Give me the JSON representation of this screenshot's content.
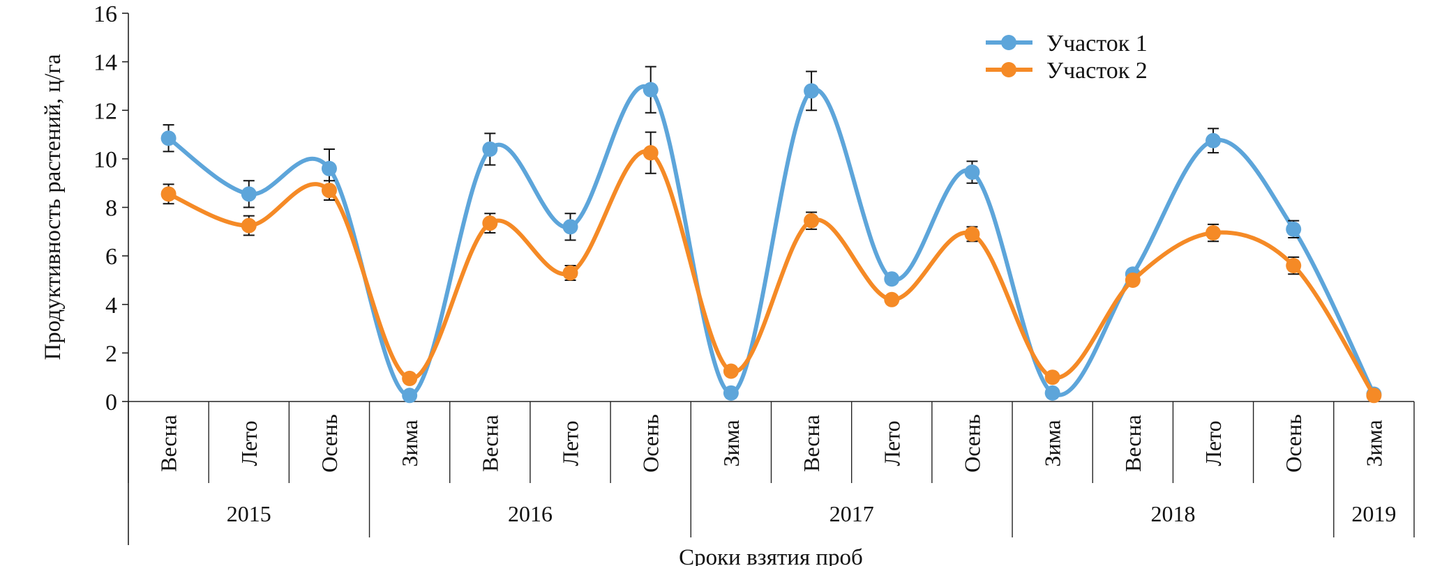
{
  "chart_data": {
    "type": "line",
    "smoothed": true,
    "ylabel": "Продуктивность растений, ц/га",
    "xlabel": "Сроки взятия проб",
    "ylim": [
      0,
      16
    ],
    "yticks": [
      0,
      2,
      4,
      6,
      8,
      10,
      12,
      14,
      16
    ],
    "grid": false,
    "legend_position": "top-right",
    "categories": [
      "Весна",
      "Лето",
      "Осень",
      "Зима",
      "Весна",
      "Лето",
      "Осень",
      "Зима",
      "Весна",
      "Лето",
      "Осень",
      "Зима",
      "Весна",
      "Лето",
      "Осень",
      "Зима"
    ],
    "year_groups": [
      {
        "label": "2015",
        "span": 3
      },
      {
        "label": "2016",
        "span": 4
      },
      {
        "label": "2017",
        "span": 4
      },
      {
        "label": "2018",
        "span": 4
      },
      {
        "label": "2019",
        "span": 1
      }
    ],
    "series": [
      {
        "name": "Участок 1",
        "color": "#5DA5DA",
        "values": [
          10.85,
          8.55,
          9.6,
          0.25,
          10.4,
          7.2,
          12.85,
          0.35,
          12.8,
          5.05,
          9.45,
          0.35,
          5.25,
          10.75,
          7.1,
          0.3
        ],
        "errors": [
          0.55,
          0.55,
          0.8,
          0,
          0.65,
          0.55,
          0.95,
          0,
          0.8,
          0,
          0.45,
          0,
          0,
          0.5,
          0.35,
          0
        ]
      },
      {
        "name": "Участок 2",
        "color": "#F58A26",
        "values": [
          8.55,
          7.25,
          8.7,
          0.95,
          7.35,
          5.3,
          10.25,
          1.25,
          7.45,
          4.2,
          6.9,
          1.0,
          5.0,
          6.95,
          5.6,
          0.25
        ],
        "errors": [
          0.4,
          0.4,
          0.4,
          0,
          0.4,
          0.3,
          0.85,
          0,
          0.35,
          0,
          0.3,
          0,
          0,
          0.35,
          0.35,
          0
        ]
      }
    ]
  }
}
